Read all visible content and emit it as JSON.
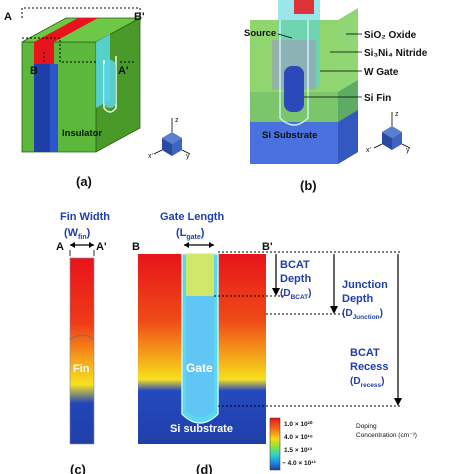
{
  "panel_a": {
    "caption": "(a)",
    "label_A": "A",
    "label_B_top": "B'",
    "label_B": "B",
    "label_A_prime": "A'",
    "insulator": "Insulator"
  },
  "panel_b": {
    "caption": "(b)",
    "source": "Source",
    "sio2": "SiO₂ Oxide",
    "si3n4": "Si₃Ni₄ Nitride",
    "w_gate": "W Gate",
    "si_fin": "Si Fin",
    "substrate": "Si Substrate"
  },
  "axes": {
    "z": "z",
    "x": "x'",
    "y": "y"
  },
  "panel_c": {
    "fin_width": "Fin Width",
    "fin_width_sym": "(W",
    "fin_width_sub": "fin",
    "fin_width_close": ")",
    "label_A": "A",
    "label_A_prime": "A'",
    "fin": "Fin",
    "caption": "(c)"
  },
  "panel_d": {
    "gate_length": "Gate Length",
    "gate_length_sym": "(L",
    "gate_length_sub": "gate",
    "gate_length_close": ")",
    "label_B": "B",
    "label_B_prime": "B'",
    "gate": "Gate",
    "substrate": "Si substrate",
    "caption": "(d)",
    "bcat_depth_1": "BCAT",
    "bcat_depth_2": "Depth",
    "bcat_depth_3": "(D",
    "bcat_depth_sub": "BCAT",
    "junction_1": "Junction",
    "junction_2": "Depth",
    "junction_3": "(D",
    "junction_sub": "Junction",
    "recess_1": "BCAT",
    "recess_2": "Recess",
    "recess_3": "(D",
    "recess_sub": "recess"
  },
  "colorbar": {
    "title_1": "Doping",
    "title_2": "Concentration (cm⁻³)",
    "ticks": [
      "1.0 × 10²⁰",
      "4.0 × 10¹⁶",
      "1.5 × 10¹³",
      "− 4.0 × 10¹³"
    ],
    "colors": [
      "#e8141b",
      "#f26a1b",
      "#f6d816",
      "#8fe23a",
      "#2fd6c8",
      "#1e8fe0",
      "#1f3fa8"
    ]
  }
}
